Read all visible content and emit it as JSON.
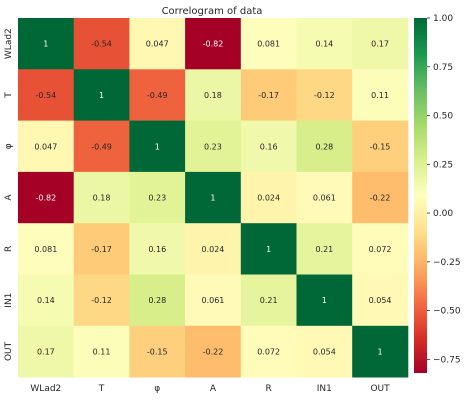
{
  "chart_data": {
    "type": "heatmap",
    "title": "Correlogram of data",
    "xlabel": "",
    "ylabel": "",
    "rows": [
      "WLad2",
      "T",
      "φ",
      "A",
      "R",
      "IN1",
      "OUT"
    ],
    "columns": [
      "WLad2",
      "T",
      "φ",
      "A",
      "R",
      "IN1",
      "OUT"
    ],
    "matrix": [
      [
        1,
        -0.54,
        0.047,
        -0.82,
        0.081,
        0.14,
        0.17
      ],
      [
        -0.54,
        1,
        -0.49,
        0.18,
        -0.17,
        -0.12,
        0.11
      ],
      [
        0.047,
        -0.49,
        1,
        0.23,
        0.16,
        0.28,
        -0.15
      ],
      [
        -0.82,
        0.18,
        0.23,
        1,
        0.024,
        0.061,
        -0.22
      ],
      [
        0.081,
        -0.17,
        0.16,
        0.024,
        1,
        0.21,
        0.072
      ],
      [
        0.14,
        -0.12,
        0.28,
        0.061,
        0.21,
        1,
        0.054
      ],
      [
        0.17,
        0.11,
        -0.15,
        -0.22,
        0.072,
        0.054,
        1
      ]
    ],
    "cell_labels": [
      [
        "1",
        "-0.54",
        "0.047",
        "-0.82",
        "0.081",
        "0.14",
        "0.17"
      ],
      [
        "-0.54",
        "1",
        "-0.49",
        "0.18",
        "-0.17",
        "-0.12",
        "0.11"
      ],
      [
        "0.047",
        "-0.49",
        "1",
        "0.23",
        "0.16",
        "0.28",
        "-0.15"
      ],
      [
        "-0.82",
        "0.18",
        "0.23",
        "1",
        "0.024",
        "0.061",
        "-0.22"
      ],
      [
        "0.081",
        "-0.17",
        "0.16",
        "0.024",
        "1",
        "0.21",
        "0.072"
      ],
      [
        "0.14",
        "-0.12",
        "0.28",
        "0.061",
        "0.21",
        "1",
        "0.054"
      ],
      [
        "0.17",
        "0.11",
        "-0.15",
        "-0.22",
        "0.072",
        "0.054",
        "1"
      ]
    ],
    "colorbar": {
      "vmin": -0.82,
      "vmax": 1.0,
      "ticks": [
        1.0,
        0.75,
        0.5,
        0.25,
        0.0,
        -0.25,
        -0.5,
        -0.75
      ],
      "tick_labels": [
        "1.00",
        "0.75",
        "0.50",
        "0.25",
        "0.00",
        "−0.25",
        "−0.50",
        "−0.75"
      ],
      "colormap": "RdYlGn",
      "position": "right"
    },
    "grid": false,
    "colors": {
      "text_dark": "#262626",
      "text_light": "#ffffff",
      "axis_text": "#262626"
    }
  }
}
